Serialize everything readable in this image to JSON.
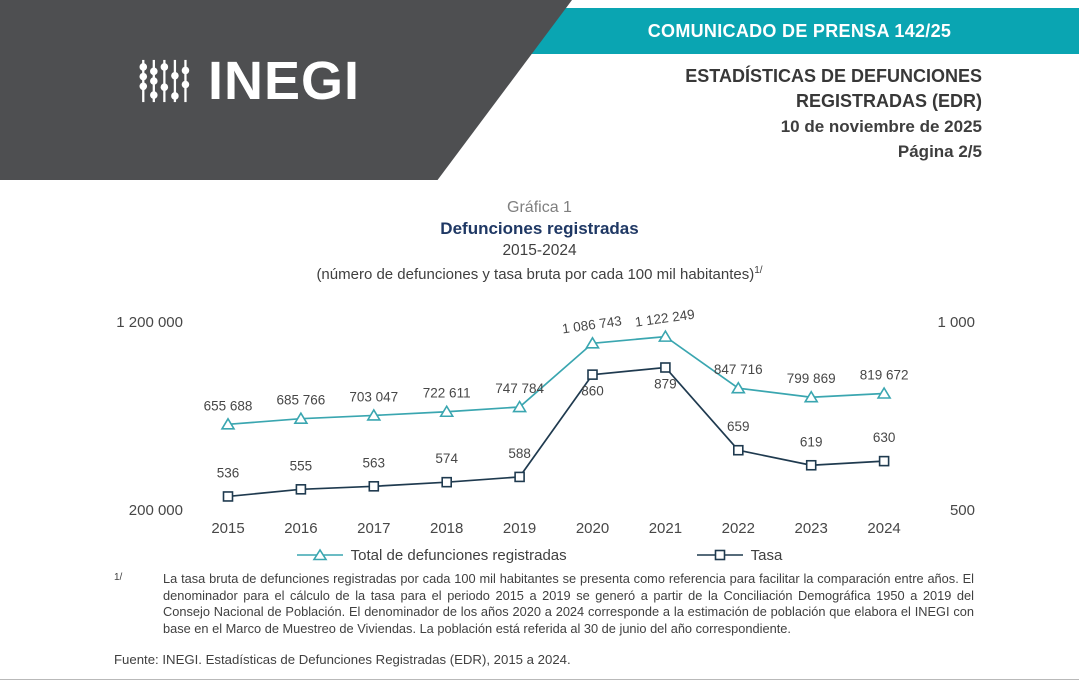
{
  "colors": {
    "teal_banner": "#0aa5b2",
    "dark_banner": "#4e4f51",
    "title_navy": "#1f3864",
    "series_total": "#3aa6b0",
    "series_tasa": "#1f3a4f",
    "label_text": "#474747"
  },
  "logo": {
    "text": "INEGI"
  },
  "header": {
    "press_banner": "COMUNICADO DE PRENSA 142/25",
    "title_line1": "ESTADÍSTICAS DE DEFUNCIONES",
    "title_line2": "REGISTRADAS (EDR)",
    "date": "10 de noviembre de 2025",
    "page_number": "Página 2/5"
  },
  "chart_header": {
    "label": "Gráfica 1",
    "title": "Defunciones registradas",
    "period": "2015-2024",
    "subtitle": "(número de defunciones y tasa bruta por cada 100 mil habitantes)",
    "note_ref": "1/"
  },
  "chart_data": {
    "type": "line",
    "title": "Defunciones registradas 2015-2024",
    "categories": [
      "2015",
      "2016",
      "2017",
      "2018",
      "2019",
      "2020",
      "2021",
      "2022",
      "2023",
      "2024"
    ],
    "series": [
      {
        "name": "Total de defunciones registradas",
        "axis": "left",
        "marker": "triangle",
        "color": "#3aa6b0",
        "values": [
          655688,
          685766,
          703047,
          722611,
          747784,
          1086743,
          1122249,
          847716,
          799869,
          819672
        ]
      },
      {
        "name": "Tasa",
        "axis": "right",
        "marker": "square",
        "color": "#1f3a4f",
        "values": [
          536,
          555,
          563,
          574,
          588,
          860,
          879,
          659,
          619,
          630
        ]
      }
    ],
    "left_axis": {
      "min": 200000,
      "max": 1200000,
      "labels": [
        "1 200 000",
        "200 000"
      ]
    },
    "right_axis": {
      "min": 500,
      "max": 1000,
      "labels": [
        "1 000",
        "500"
      ]
    },
    "grid": false,
    "legend_position": "bottom"
  },
  "footnote": {
    "ref": "1/",
    "text": "La tasa bruta de defunciones registradas por cada 100 mil habitantes se presenta como referencia para facilitar la comparación entre años. El denominador para el cálculo de la tasa para el periodo 2015 a 2019 se generó a partir de la Conciliación Demográfica 1950 a 2019 del Consejo Nacional de Población. El denominador de los años 2020 a 2024 corresponde a la estimación de población que elabora el INEGI con base en el Marco de Muestreo de Viviendas. La población está referida al 30 de junio del año correspondiente.",
    "source": "Fuente: INEGI. Estadísticas de Defunciones Registradas (EDR), 2015 a 2024."
  }
}
